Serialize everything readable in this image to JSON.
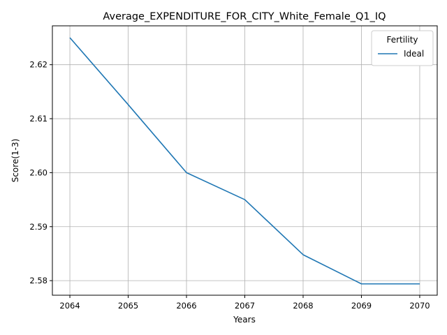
{
  "chart_data": {
    "type": "line",
    "title": "Average_EXPENDITURE_FOR_CITY_White_Female_Q1_IQ",
    "xlabel": "Years",
    "ylabel": "Score(1-3)",
    "x": [
      2064,
      2065,
      2066,
      2067,
      2068,
      2069,
      2070
    ],
    "x_tick_labels": [
      "2064",
      "2065",
      "2066",
      "2067",
      "2068",
      "2069",
      "2070"
    ],
    "y_ticks": [
      2.58,
      2.59,
      2.6,
      2.61,
      2.62
    ],
    "y_tick_labels": [
      "2.58",
      "2.59",
      "2.60",
      "2.61",
      "2.62"
    ],
    "xlim": [
      2063.7,
      2070.3
    ],
    "ylim": [
      2.5773,
      2.6272
    ],
    "grid": true,
    "legend": {
      "title": "Fertility",
      "placement": "top-right"
    },
    "series": [
      {
        "name": "Ideal",
        "color": "#1f77b4",
        "values": [
          2.625,
          2.6126,
          2.6,
          2.595,
          2.5848,
          2.5794,
          2.5794
        ]
      }
    ]
  }
}
